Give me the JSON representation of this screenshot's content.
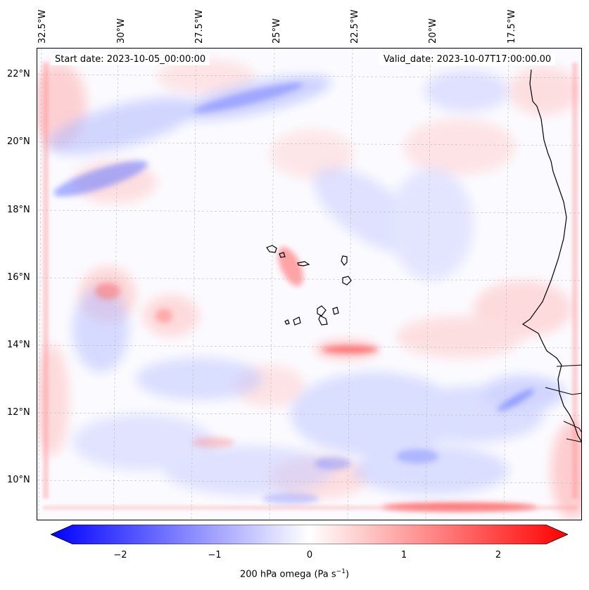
{
  "map": {
    "start_date": "Start date: 2023-10-05_00:00:00",
    "valid_date": "Valid_date: 2023-10-07T17:00:00.00",
    "lon_labels": [
      "32.5°W",
      "30°W",
      "27.5°W",
      "25°W",
      "22.5°W",
      "20°W",
      "17.5°W"
    ],
    "lat_labels": [
      "22°N",
      "20°N",
      "18°N",
      "16°N",
      "14°N",
      "12°N",
      "10°N"
    ],
    "colors": {
      "negative": "#0000ff",
      "zero": "#ffffff",
      "positive": "#ff0000",
      "coast": "#000000",
      "grid": "#bbbbbb"
    }
  },
  "colorbar": {
    "range": [
      -2.75,
      2.75
    ],
    "ticks": [
      "−2",
      "−1",
      "0",
      "1",
      "2"
    ],
    "tick_values": [
      -2,
      -1,
      0,
      1,
      2
    ],
    "label": "200 hPa omega (Pa s",
    "label_sup": "−1",
    "label_end": ")"
  }
}
